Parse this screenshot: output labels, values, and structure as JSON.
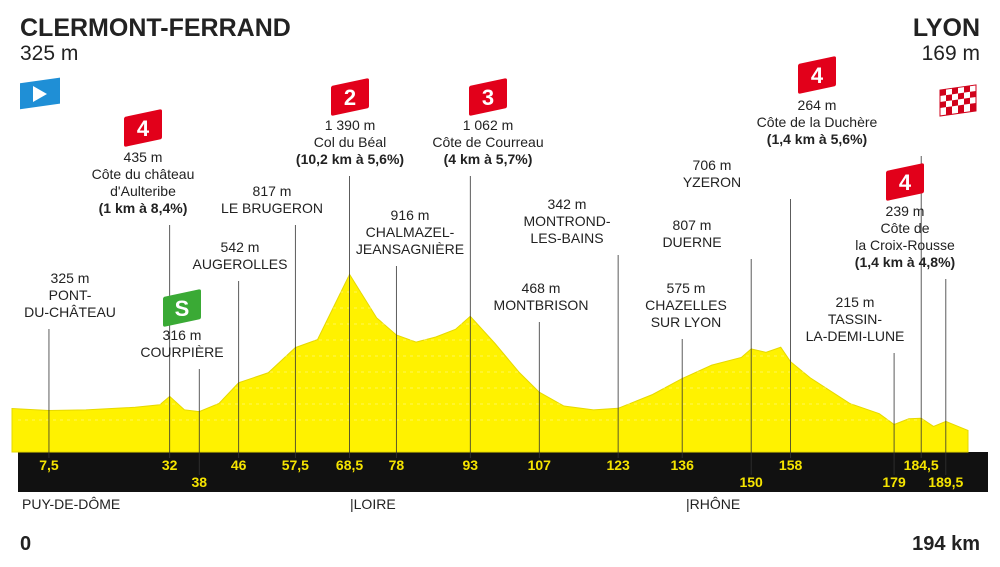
{
  "start": {
    "name": "CLERMONT-FERRAND",
    "altitude": "325 m"
  },
  "finish": {
    "name": "LYON",
    "altitude": "169 m"
  },
  "profile": {
    "xlim": [
      0,
      194
    ],
    "ylim": [
      0,
      1800
    ],
    "km": [
      0,
      7.5,
      15,
      25,
      30,
      32,
      35,
      38,
      42,
      46,
      52,
      57.5,
      62,
      68.5,
      74,
      78,
      82,
      86,
      90,
      93,
      98,
      103,
      107,
      112,
      118,
      123,
      130,
      136,
      142,
      148,
      150,
      153,
      156,
      158,
      162,
      166,
      170,
      176,
      179,
      182,
      184.5,
      187,
      189.5,
      194
    ],
    "altitude": [
      340,
      325,
      330,
      350,
      370,
      435,
      330,
      316,
      380,
      542,
      620,
      817,
      880,
      1390,
      1050,
      916,
      860,
      900,
      960,
      1062,
      850,
      620,
      468,
      360,
      330,
      342,
      450,
      575,
      680,
      740,
      807,
      780,
      820,
      706,
      580,
      480,
      380,
      300,
      215,
      260,
      264,
      200,
      239,
      169
    ]
  },
  "waypoints": [
    {
      "km": {
        "value": 7.5,
        "label": "7,5"
      },
      "altitude": "325 m",
      "name": [
        "PONT-",
        "DU-CHÂTEAU"
      ]
    },
    {
      "km": 32,
      "altitude": "435 m",
      "name": [
        "Côte du château",
        "d'Aulteribe"
      ],
      "climb": "(1 km à 8,4%)",
      "category": "4"
    },
    {
      "km": 38,
      "altitude": "316 m",
      "name": [
        "COURPIÈRE"
      ],
      "sprint": "S"
    },
    {
      "km": 46,
      "altitude": "542 m",
      "name": [
        "AUGEROLLES"
      ]
    },
    {
      "km": {
        "value": 57.5,
        "label": "57,5"
      },
      "altitude": "817 m",
      "name": [
        "LE BRUGERON"
      ]
    },
    {
      "km": {
        "value": 68.5,
        "label": "68,5"
      },
      "altitude": "1 390 m",
      "name": [
        "Col du Béal"
      ],
      "climb": "(10,2 km à 5,6%)",
      "category": "2"
    },
    {
      "km": 78,
      "altitude": "916 m",
      "name": [
        "CHALMAZEL-",
        "JEANSAGNIÈRE"
      ]
    },
    {
      "km": 93,
      "altitude": "1 062 m",
      "name": [
        "Côte de Courreau"
      ],
      "climb": "(4 km à 5,7%)",
      "category": "3"
    },
    {
      "km": 107,
      "altitude": "468 m",
      "name": [
        "MONTBRISON"
      ]
    },
    {
      "km": 123,
      "altitude": "342 m",
      "name": [
        "MONTROND-",
        "LES-BAINS"
      ]
    },
    {
      "km": 136,
      "altitude": "575 m",
      "name": [
        "CHAZELLES",
        "SUR LYON"
      ]
    },
    {
      "km": 150,
      "altitude": "807 m",
      "name": [
        "DUERNE"
      ]
    },
    {
      "km": 158,
      "altitude": "706 m",
      "name": [
        "YZERON"
      ]
    },
    {
      "km": 179,
      "altitude": "215 m",
      "name": [
        "TASSIN-",
        "LA-DEMI-LUNE"
      ]
    },
    {
      "km": {
        "value": 184.5,
        "label": "184,5"
      },
      "altitude": "264 m",
      "name": [
        "Côte de la Duchère"
      ],
      "climb": "(1,4 km à 5,6%)",
      "category": "4"
    },
    {
      "km": {
        "value": 189.5,
        "label": "189,5"
      },
      "altitude": "239 m",
      "name": [
        "Côte de",
        "la Croix-Rousse"
      ],
      "climb": "(1,4 km à 4,8%)",
      "category": "4"
    }
  ],
  "departments": [
    "PUY-DE-DÔME",
    "|LOIRE",
    "|RHÔNE"
  ],
  "distance": {
    "start": "0",
    "end": "194 km"
  }
}
